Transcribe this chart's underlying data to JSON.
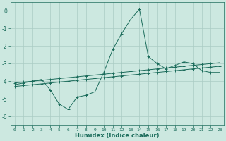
{
  "xlabel": "Humidex (Indice chaleur)",
  "x": [
    0,
    1,
    2,
    3,
    4,
    5,
    6,
    7,
    8,
    9,
    10,
    11,
    12,
    13,
    14,
    15,
    16,
    17,
    18,
    19,
    20,
    21,
    22,
    23
  ],
  "line1": [
    -4.2,
    -4.1,
    -4.0,
    -3.9,
    -4.5,
    -5.3,
    -5.6,
    -4.9,
    -4.8,
    -4.6,
    -3.5,
    -2.2,
    -1.3,
    -0.5,
    0.1,
    -2.6,
    -3.0,
    -3.3,
    -3.1,
    -2.9,
    -3.0,
    -3.4,
    -3.5,
    -3.5
  ],
  "line2": [
    -4.1,
    -4.05,
    -4.0,
    -3.95,
    -3.9,
    -3.85,
    -3.8,
    -3.75,
    -3.7,
    -3.65,
    -3.6,
    -3.55,
    -3.5,
    -3.45,
    -3.4,
    -3.35,
    -3.3,
    -3.25,
    -3.2,
    -3.15,
    -3.1,
    -3.05,
    -3.0,
    -2.95
  ],
  "line3": [
    -4.3,
    -4.25,
    -4.2,
    -4.15,
    -4.1,
    -4.05,
    -4.0,
    -3.95,
    -3.9,
    -3.85,
    -3.8,
    -3.75,
    -3.7,
    -3.65,
    -3.6,
    -3.55,
    -3.5,
    -3.45,
    -3.4,
    -3.35,
    -3.3,
    -3.25,
    -3.2,
    -3.15
  ],
  "bg_color": "#cce8e0",
  "grid_color": "#aaccC4",
  "line_color": "#1a6b5a",
  "ylim": [
    -6.5,
    0.5
  ],
  "xlim": [
    -0.5,
    23.5
  ]
}
